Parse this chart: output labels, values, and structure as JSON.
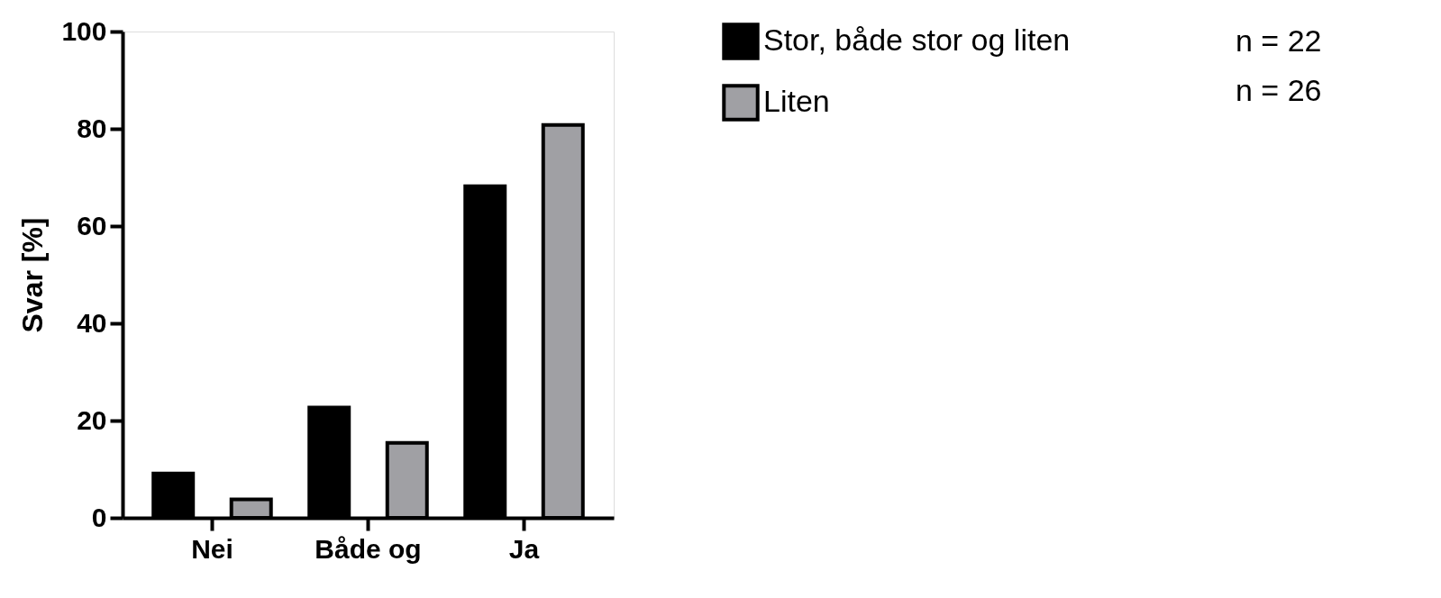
{
  "chart_data": {
    "type": "bar",
    "ylabel": "Svar [%]",
    "categories": [
      "Nei",
      "Både og",
      "Ja"
    ],
    "series": [
      {
        "name": "Stor, både stor og liten",
        "color": "#000000",
        "values": [
          9.1,
          22.7,
          68.2
        ]
      },
      {
        "name": "Liten",
        "color": "#a0a0a4",
        "values": [
          3.8,
          15.4,
          80.8
        ]
      }
    ],
    "ylim": [
      0,
      100
    ],
    "yticks": [
      0,
      20,
      40,
      60,
      80,
      100
    ],
    "grid": false,
    "legend": "top right",
    "annotations": [
      "n = 22",
      "n = 26"
    ]
  }
}
